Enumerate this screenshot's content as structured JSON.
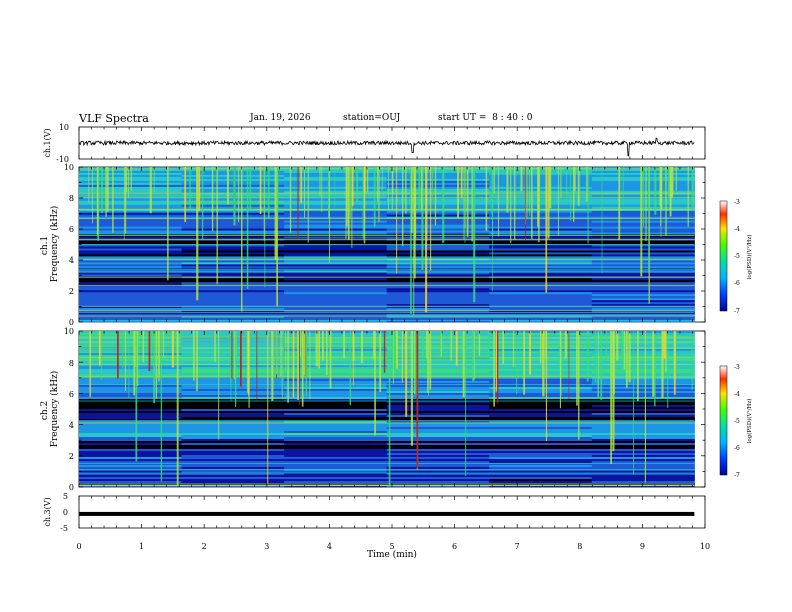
{
  "header": {
    "title": "VLF Spectra",
    "date": "Jan. 19, 2026",
    "station": "station=OUJ",
    "start_ut": "start UT =  8 : 40 : 0"
  },
  "chart_data": [
    {
      "type": "line",
      "panel": "ch1-waveform",
      "ylabel": "ch.1(V)",
      "ylim": [
        -10,
        10
      ],
      "yticks": [
        "10",
        "-10"
      ],
      "baseline": 0,
      "noise_amplitude": 1.2,
      "spikes": [
        {
          "t": 5.33,
          "v": -6
        },
        {
          "t": 8.78,
          "v": -8
        },
        {
          "t": 9.22,
          "v": 3
        }
      ]
    },
    {
      "type": "heatmap",
      "panel": "ch1-spectrogram",
      "ylabel": "ch.1\nFrequency (kHz)",
      "ylim": [
        0,
        10
      ],
      "yticks": [
        "0",
        "2",
        "4",
        "6",
        "8",
        "10"
      ],
      "colorbar": {
        "label": "log(PSD)(V²/Hz)",
        "range": [
          -7,
          -3
        ],
        "ticks": [
          "-3",
          "-4",
          "-5",
          "-6",
          "-7"
        ]
      }
    },
    {
      "type": "heatmap",
      "panel": "ch2-spectrogram",
      "ylabel": "ch.2\nFrequency (kHz)",
      "ylim": [
        0,
        10
      ],
      "yticks": [
        "0",
        "2",
        "4",
        "6",
        "8",
        "10"
      ],
      "colorbar": {
        "label": "log(PSD)(V²/Hz)",
        "range": [
          -7,
          -3
        ],
        "ticks": [
          "-3",
          "-4",
          "-5",
          "-6",
          "-7"
        ]
      }
    },
    {
      "type": "line",
      "panel": "ch3-waveform",
      "ylabel": "ch.3(V)",
      "ylim": [
        -5,
        5
      ],
      "yticks": [
        "5",
        "0",
        "-5"
      ],
      "baseline": -0.6
    }
  ],
  "xaxis": {
    "label": "Time (min)",
    "range": [
      0,
      10
    ],
    "data_end": 9.83,
    "ticks": [
      "0",
      "1",
      "2",
      "3",
      "4",
      "5",
      "6",
      "7",
      "8",
      "9",
      "10"
    ]
  },
  "colors": {
    "cmap": [
      "#000000",
      "#0a14a0",
      "#1e5ad8",
      "#1e96e6",
      "#28c8c8",
      "#3cdc78",
      "#b4e63c",
      "#ffd21e",
      "#f06414",
      "#c81414",
      "#ffffff"
    ]
  }
}
